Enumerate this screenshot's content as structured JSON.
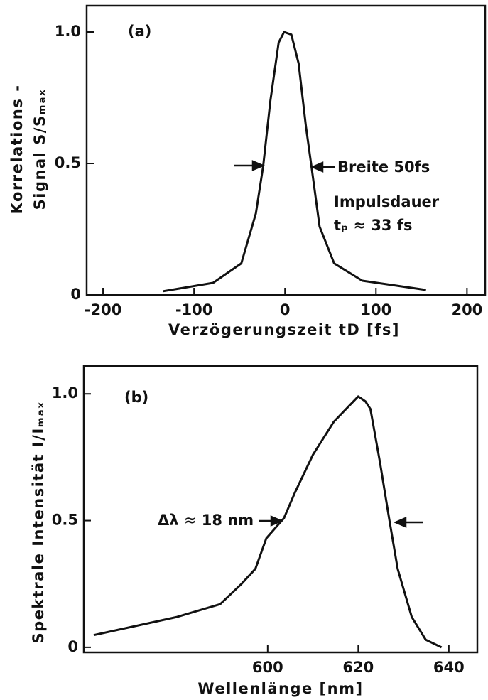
{
  "chart_data": [
    {
      "type": "line",
      "x_label": "Verzögerungszeit tD [fs]",
      "y_label": [
        "Korrelations -",
        "Signal S/Sₘₐₓ"
      ],
      "annotations": [
        "(a)",
        "Breite 50fs",
        "Impulsdauer",
        "tₚ ≈ 33 fs"
      ],
      "x": [
        -134,
        -79,
        -48,
        -32,
        -24,
        -16,
        -7,
        -1,
        7,
        15,
        23,
        29,
        38,
        54,
        85,
        155
      ],
      "values": [
        0.014,
        0.046,
        0.12,
        0.31,
        0.49,
        0.74,
        0.96,
        1.0,
        0.99,
        0.88,
        0.64,
        0.49,
        0.26,
        0.12,
        0.054,
        0.019
      ],
      "color": "#111111",
      "xlim": [
        -218,
        220
      ],
      "xticks": [
        -200,
        -100,
        0,
        100,
        200
      ],
      "ylim": [
        0,
        1.1
      ],
      "yticks": [
        0,
        0.5,
        {
          "value": 1,
          "label": "1.0"
        }
      ]
    },
    {
      "type": "line",
      "x_label": "Wellenlänge [nm]",
      "y_label": [
        "Spektrale Intensität I/Iₘₐₓ"
      ],
      "annotations": [
        "(b)",
        "Δλ ≈ 18 nm"
      ],
      "x": [
        561.6,
        580,
        589.5,
        594.2,
        597.3,
        599.7,
        603.6,
        606,
        610,
        614.6,
        620,
        621.6,
        622.7,
        624.8,
        626.8,
        628.7,
        631.8,
        634.9,
        638.4
      ],
      "values": [
        0.048,
        0.12,
        0.17,
        0.25,
        0.31,
        0.43,
        0.51,
        0.61,
        0.76,
        0.89,
        0.99,
        0.97,
        0.94,
        0.73,
        0.51,
        0.31,
        0.12,
        0.03,
        0
      ],
      "color": "#111111",
      "xlim": [
        559.4,
        646.3
      ],
      "xticks": [
        600,
        620,
        640
      ],
      "ylim": [
        -0.02,
        1.11
      ],
      "yticks": [
        0,
        0.5,
        {
          "value": 1,
          "label": "1.0"
        }
      ]
    }
  ]
}
